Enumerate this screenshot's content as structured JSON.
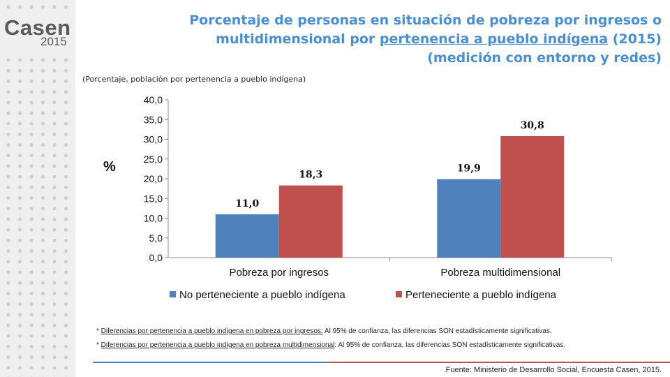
{
  "logo": {
    "name": "Casen",
    "year": "2015"
  },
  "title": {
    "line1": "Porcentaje de personas en situación de pobreza por ingresos o",
    "line2_pre": "multidimensional por ",
    "line2_underlined": "pertenencia a pueblo indígena",
    "line2_post": " (2015)",
    "line3": "(medición con entorno y redes)"
  },
  "subtitle": "(Porcentaje, población por pertenencia a pueblo indígena)",
  "chart_data": {
    "type": "bar",
    "title": "",
    "xlabel": "",
    "ylabel": "%",
    "ylim": [
      0,
      40
    ],
    "yticks": [
      "0,0",
      "5,0",
      "10,0",
      "15,0",
      "20,0",
      "25,0",
      "30,0",
      "35,0",
      "40,0"
    ],
    "categories": [
      "Pobreza por ingresos",
      "Pobreza multidimensional"
    ],
    "series": [
      {
        "name": "No perteneciente a pueblo indígena",
        "values": [
          11.0,
          19.9
        ],
        "labels": [
          "11,0",
          "19,9"
        ],
        "color": "#4f81bd"
      },
      {
        "name": "Perteneciente a pueblo indígena",
        "values": [
          18.3,
          30.8
        ],
        "labels": [
          "18,3",
          "30,8"
        ],
        "color": "#c0504d"
      }
    ],
    "legend": "bottom",
    "grid": false
  },
  "notes": {
    "note1_star": "* ",
    "note1_underlined": "Diferencias por pertenencia a pueblo indígena en pobreza por ingresos:",
    "note1_rest": " Al 95% de confianza, las diferencias SON estadísticamente significativas.",
    "note2_star": "* ",
    "note2_underlined": "Diferencias por pertenencia a pueblo indígena en pobreza  multidimensional",
    "note2_rest": ": Al 95% de confianza, las diferencias SON estadísticamente significativas."
  },
  "source": "Fuente: Ministerio de Desarrollo Social, Encuesta Casen, 2015.",
  "colors": {
    "title": "#4a8fcf",
    "blue": "#4f81bd",
    "red": "#c0504d",
    "sidebar": "#efefef",
    "dots": "#cfcfcf"
  }
}
